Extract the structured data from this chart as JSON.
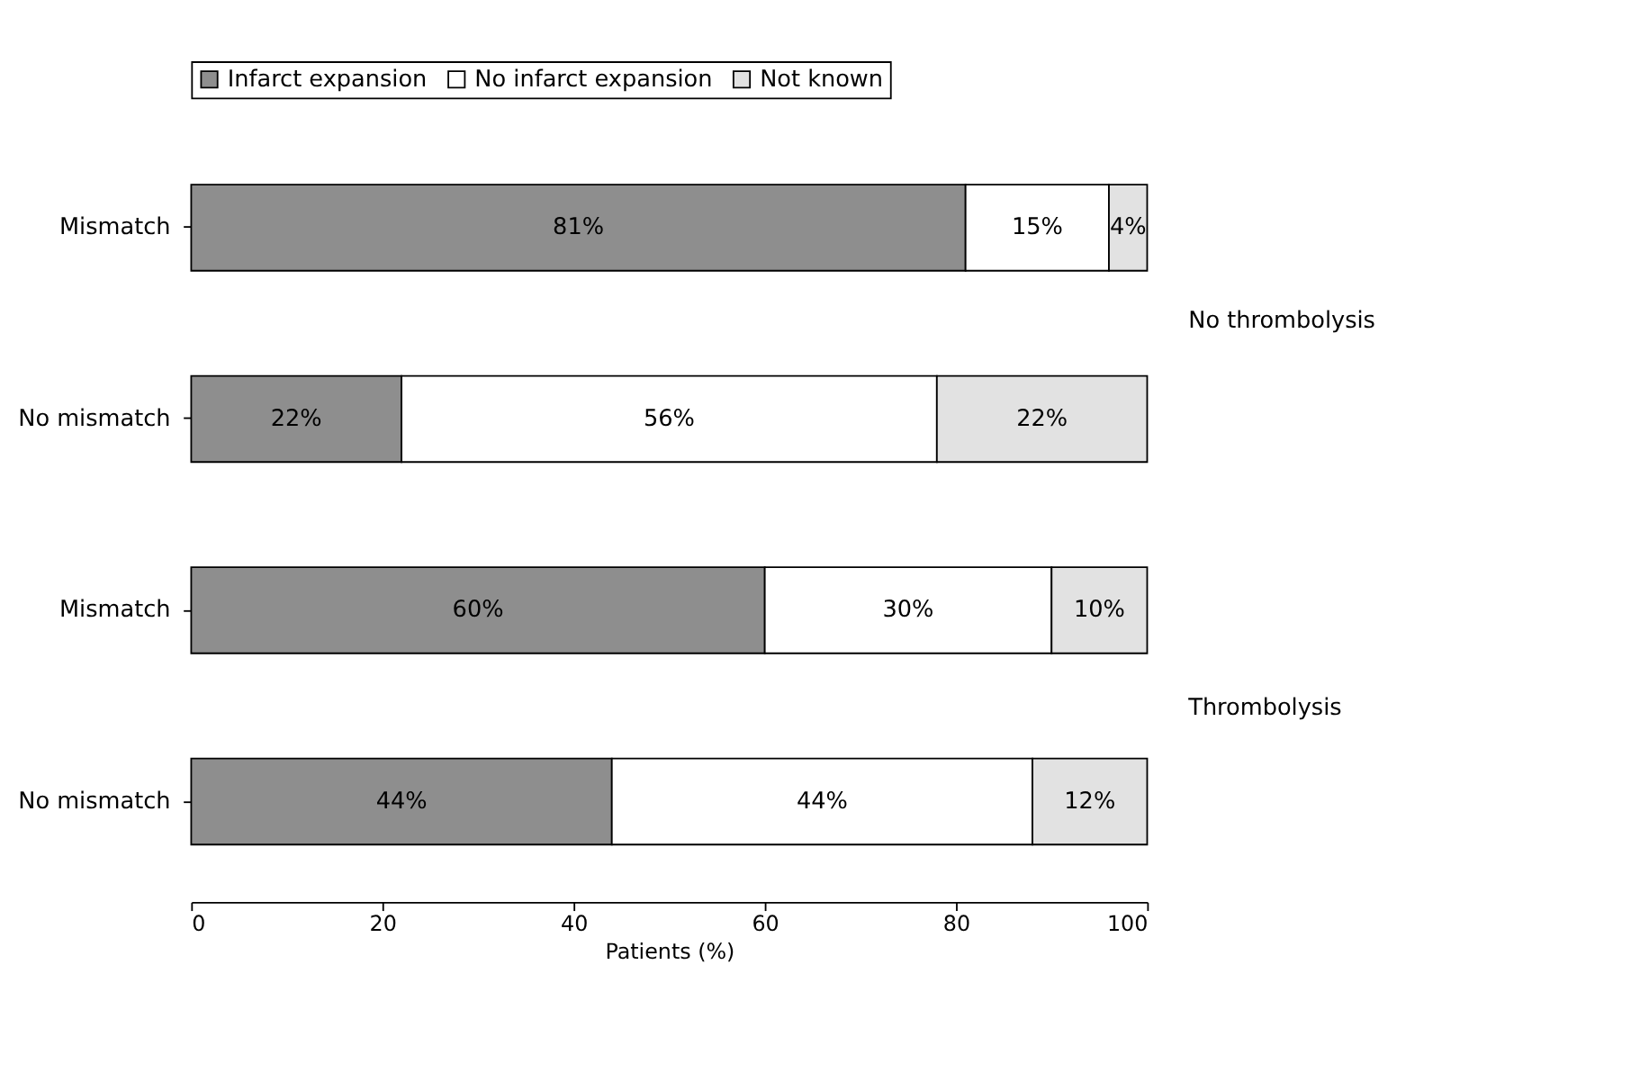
{
  "chart_data": {
    "type": "bar",
    "orientation": "horizontal",
    "stacked": true,
    "categories": [
      "Mismatch",
      "No mismatch",
      "Mismatch",
      "No mismatch"
    ],
    "series": [
      {
        "name": "Infarct expansion",
        "color": "#8e8e8e",
        "values": [
          81,
          22,
          60,
          44
        ],
        "value_labels": [
          "81%",
          "22%",
          "60%",
          "44%"
        ]
      },
      {
        "name": "No infarct expansion",
        "color": "#ffffff",
        "values": [
          15,
          56,
          30,
          44
        ],
        "value_labels": [
          "15%",
          "56%",
          "30%",
          "44%"
        ]
      },
      {
        "name": "Not known",
        "color": "#e2e2e2",
        "values": [
          4,
          22,
          10,
          12
        ],
        "value_labels": [
          "4%",
          "22%",
          "10%",
          "12%"
        ]
      }
    ],
    "xlabel": "Patients (%)",
    "xlim": [
      0,
      100
    ],
    "xticks": [
      0,
      20,
      40,
      60,
      80,
      100
    ],
    "legend": "top",
    "grid": false,
    "annotations": [
      "No thrombolysis",
      "Thrombolysis"
    ]
  }
}
